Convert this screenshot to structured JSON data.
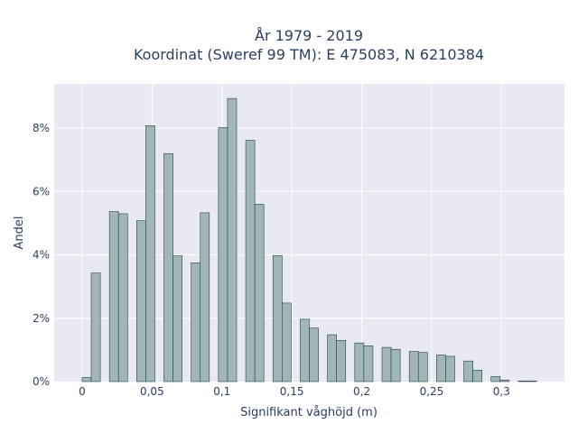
{
  "chart_data": {
    "type": "bar",
    "title": "År 1979 - 2019",
    "subtitle": "Koordinat (Sweref 99 TM): E 475083, N 6210384",
    "xlabel": "Signifikant våghöjd (m)",
    "ylabel": "Andel",
    "xlim": [
      -0.02,
      0.345
    ],
    "ylim": [
      0,
      9.4
    ],
    "x_ticks": [
      {
        "value": 0,
        "label": "0"
      },
      {
        "value": 0.05,
        "label": "0,05"
      },
      {
        "value": 0.1,
        "label": "0,1"
      },
      {
        "value": 0.15,
        "label": "0,15"
      },
      {
        "value": 0.2,
        "label": "0,2"
      },
      {
        "value": 0.25,
        "label": "0,25"
      },
      {
        "value": 0.3,
        "label": "0,3"
      }
    ],
    "y_ticks": [
      {
        "value": 0,
        "label": "0%"
      },
      {
        "value": 2,
        "label": "2%"
      },
      {
        "value": 4,
        "label": "4%"
      },
      {
        "value": 6,
        "label": "6%"
      },
      {
        "value": 8,
        "label": "8%"
      }
    ],
    "bin_width": 0.0065,
    "bar_color": "#9fb7b7",
    "plot_bg": "#e8e9f2",
    "bins_x": [
      0.0,
      0.0065,
      0.0195,
      0.026,
      0.039,
      0.0455,
      0.0585,
      0.065,
      0.078,
      0.0845,
      0.0975,
      0.104,
      0.117,
      0.1235,
      0.1365,
      0.143,
      0.156,
      0.1625,
      0.1755,
      0.182,
      0.195,
      0.2015,
      0.2145,
      0.221,
      0.234,
      0.2405,
      0.2535,
      0.26,
      0.273,
      0.2795,
      0.2925,
      0.299,
      0.312,
      0.3185
    ],
    "values": [
      0.13,
      3.43,
      5.37,
      5.3,
      5.08,
      8.08,
      7.2,
      3.97,
      3.75,
      5.33,
      8.02,
      8.94,
      7.62,
      5.6,
      3.98,
      2.48,
      1.97,
      1.69,
      1.48,
      1.3,
      1.22,
      1.13,
      1.08,
      1.02,
      0.95,
      0.92,
      0.84,
      0.8,
      0.65,
      0.36,
      0.16,
      0.05,
      0.02,
      0.02
    ],
    "legend": "none"
  }
}
